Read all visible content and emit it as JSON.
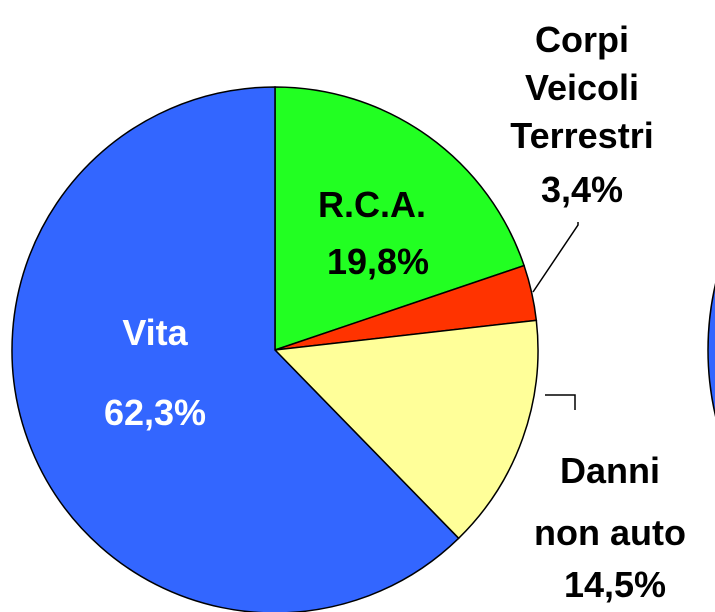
{
  "chart_data": {
    "type": "pie",
    "categories": [
      "R.C.A.",
      "Corpi Veicoli Terrestri",
      "Danni non auto",
      "Vita"
    ],
    "values": [
      19.8,
      3.4,
      14.5,
      62.3
    ],
    "value_labels": [
      "19,8%",
      "3,4%",
      "14,5%",
      "62,3%"
    ],
    "colors": [
      "#22ff22",
      "#ff3300",
      "#ffff99",
      "#3366ff"
    ]
  }
}
